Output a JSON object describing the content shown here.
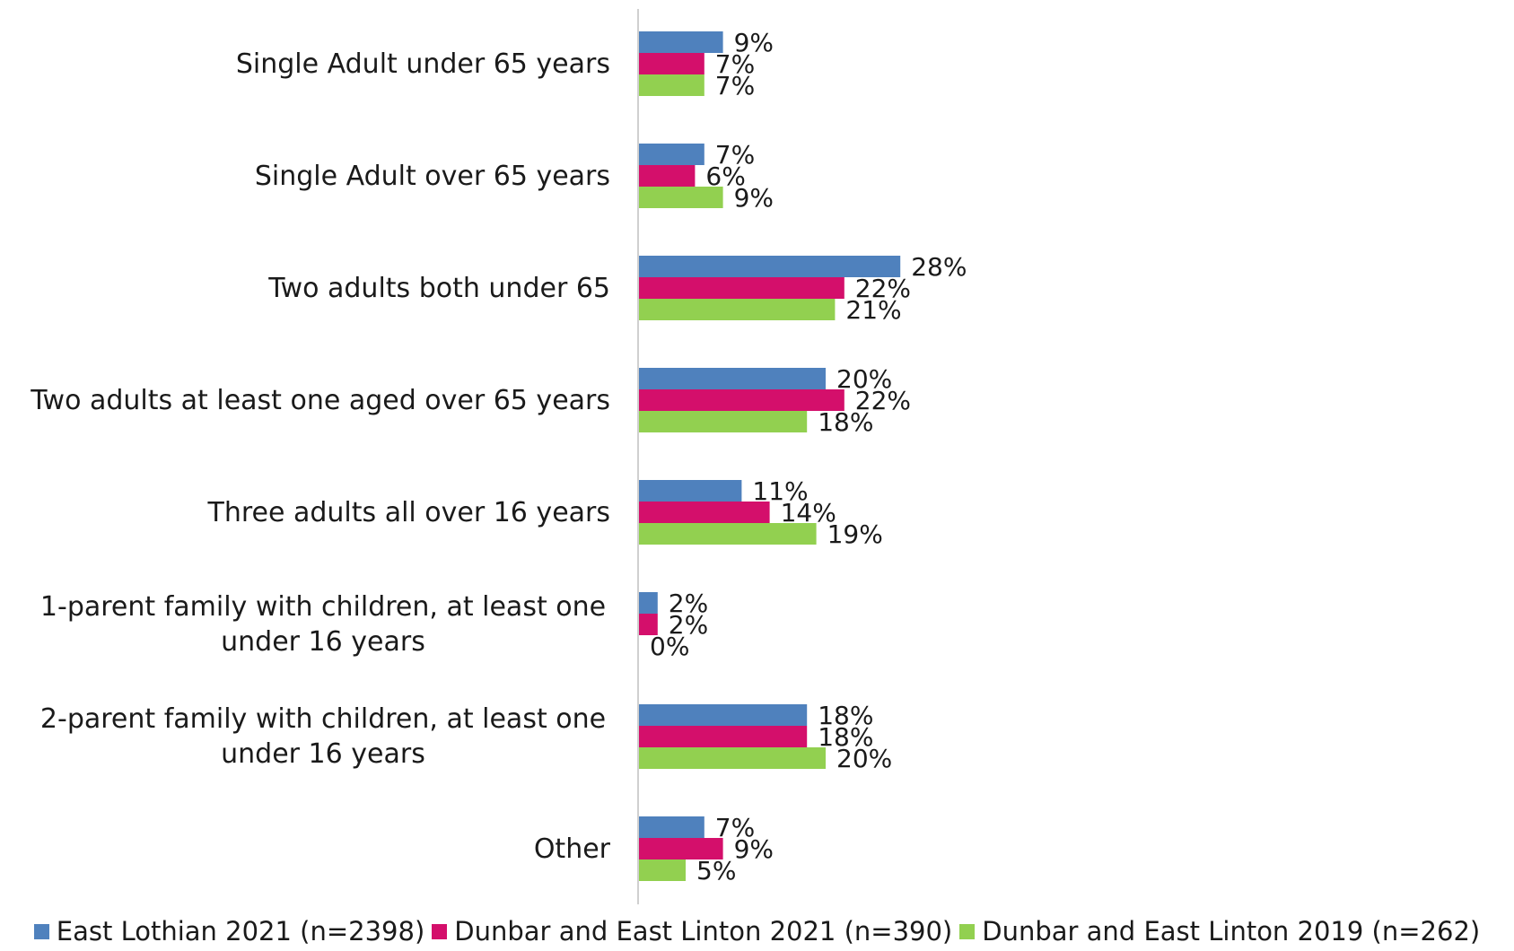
{
  "chart_data": {
    "type": "bar",
    "orientation": "horizontal",
    "categories": [
      "Single Adult under 65 years",
      "Single Adult over 65 years",
      "Two adults both under 65",
      "Two adults at least one aged over 65 years",
      "Three adults all over 16 years",
      "1-parent family with children, at least one under 16 years",
      "2-parent family with children, at least one under 16 years",
      "Other"
    ],
    "series": [
      {
        "name": "East Lothian 2021 (n=2398)",
        "color": "#4f81bd",
        "values": [
          9,
          7,
          28,
          20,
          11,
          2,
          18,
          7
        ],
        "labels": [
          "9%",
          "7%",
          "28%",
          "20%",
          "11%",
          "2%",
          "18%",
          "7%"
        ]
      },
      {
        "name": "Dunbar and East Linton 2021 (n=390)",
        "color": "#d40f6b",
        "values": [
          7,
          6,
          22,
          22,
          14,
          2,
          18,
          9
        ],
        "labels": [
          "7%",
          "6%",
          "22%",
          "22%",
          "14%",
          "2%",
          "18%",
          "9%"
        ]
      },
      {
        "name": "Dunbar and East Linton 2019 (n=262)",
        "color": "#92d050",
        "values": [
          7,
          9,
          21,
          18,
          19,
          0,
          20,
          5
        ],
        "labels": [
          "7%",
          "9%",
          "21%",
          "18%",
          "19%",
          "0%",
          "20%",
          "5%"
        ]
      }
    ],
    "xlim": [
      0,
      100
    ],
    "grid": false,
    "legend_position": "bottom"
  }
}
